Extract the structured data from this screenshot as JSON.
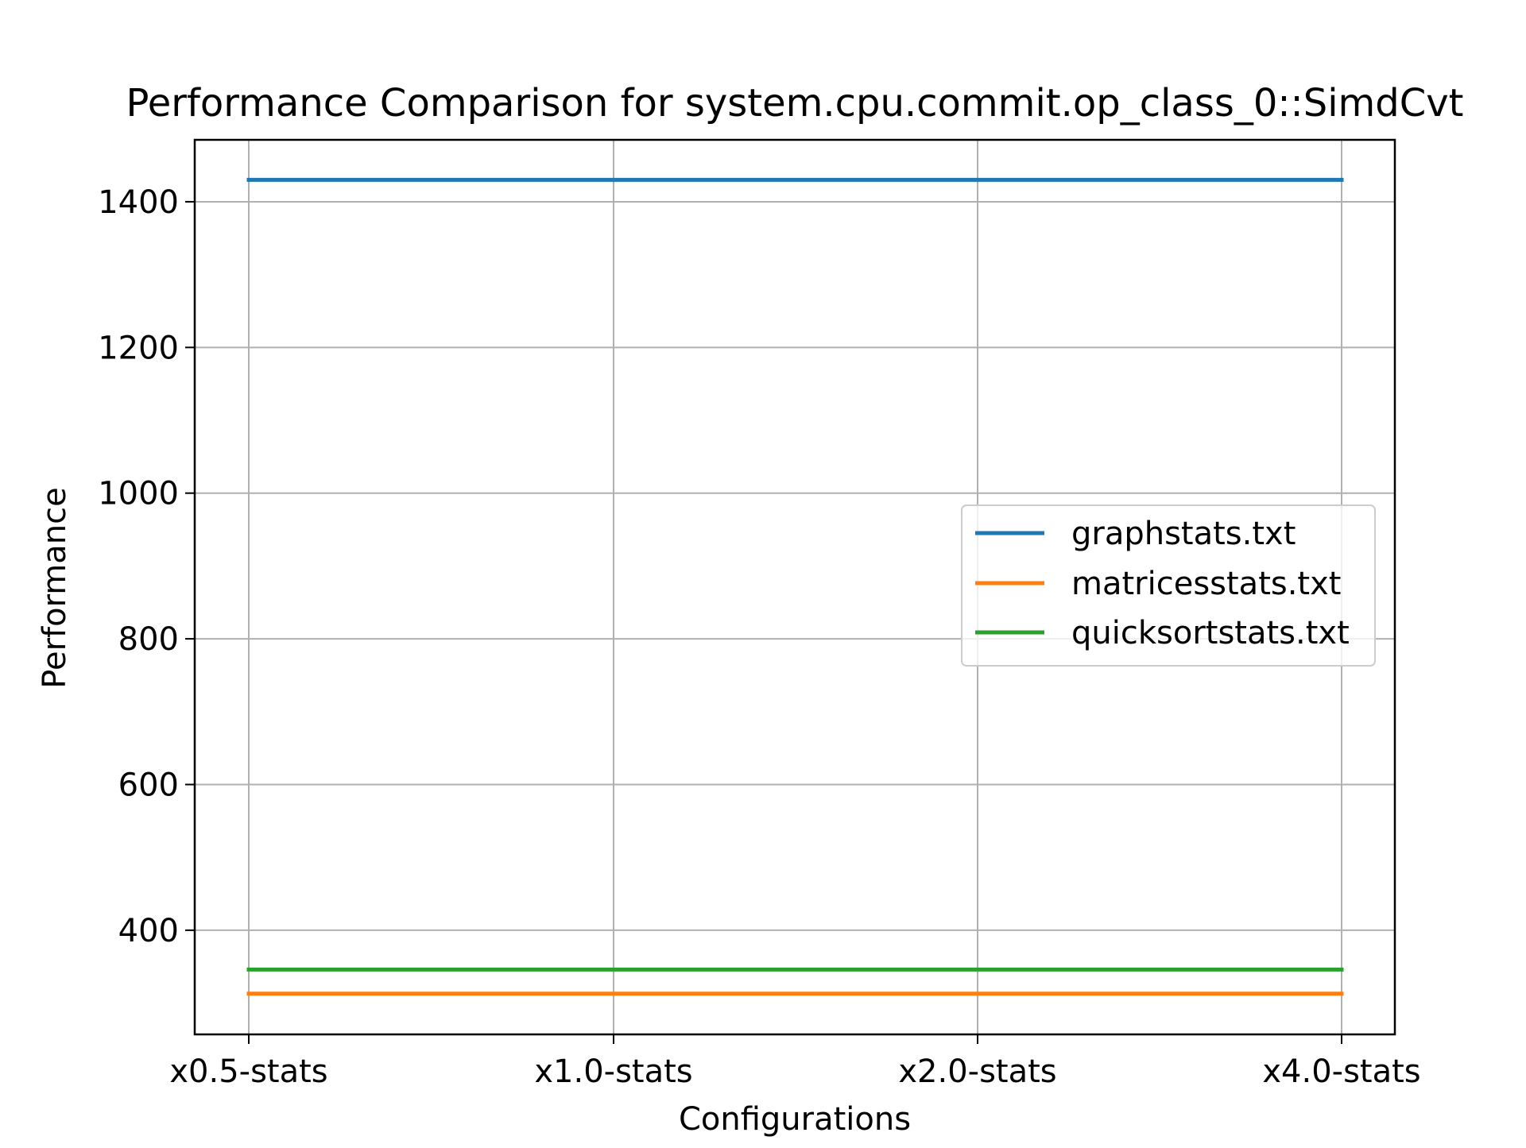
{
  "chart_data": {
    "type": "line",
    "title": "Performance Comparison for system.cpu.commit.op_class_0::SimdCvt",
    "xlabel": "Configurations",
    "ylabel": "Performance",
    "categories": [
      "x0.5-stats",
      "x1.0-stats",
      "x2.0-stats",
      "x4.0-stats"
    ],
    "ylim": [
      257,
      1485
    ],
    "yticks": [
      400,
      600,
      800,
      1000,
      1200,
      1400
    ],
    "grid": true,
    "legend_position": "center-right",
    "series": [
      {
        "name": "graphstats.txt",
        "color": "#1f77b4",
        "values": [
          1430,
          1430,
          1430,
          1430
        ]
      },
      {
        "name": "matricesstats.txt",
        "color": "#ff7f0e",
        "values": [
          313,
          313,
          313,
          313
        ]
      },
      {
        "name": "quicksortstats.txt",
        "color": "#2ca02c",
        "values": [
          346,
          346,
          346,
          346
        ]
      }
    ]
  }
}
